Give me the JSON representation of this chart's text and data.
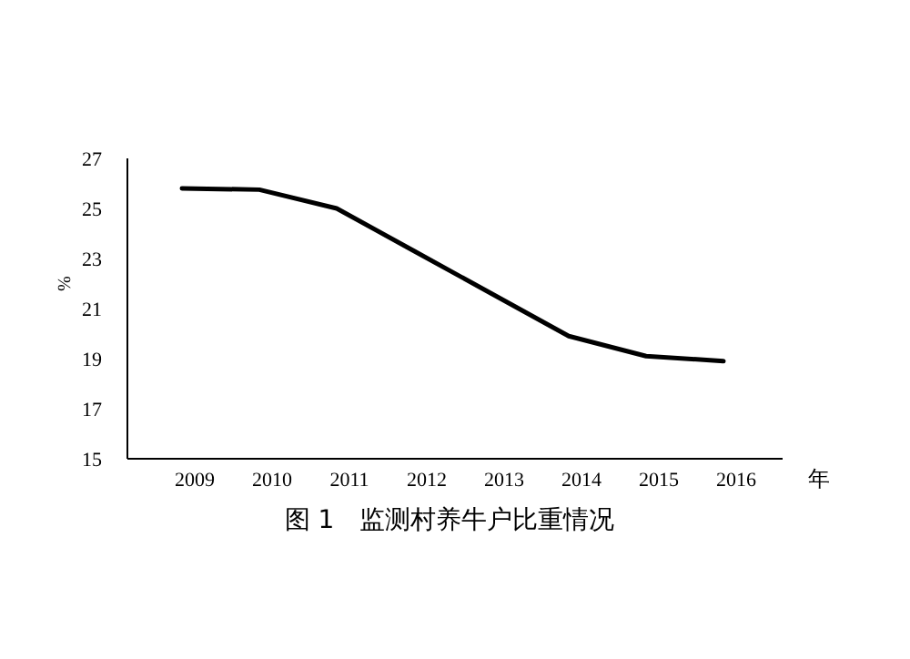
{
  "chart_data": {
    "type": "line",
    "categories": [
      "2009",
      "2010",
      "2011",
      "2012",
      "2013",
      "2014",
      "2015",
      "2016"
    ],
    "series": [
      {
        "color": "#000000",
        "values": [
          25.8,
          25.75,
          25.0,
          23.3,
          21.6,
          19.9,
          19.1,
          18.9
        ]
      }
    ],
    "ylim": [
      15,
      27
    ],
    "yticks": [
      15,
      17,
      19,
      21,
      23,
      25,
      27
    ],
    "xlabel": "年",
    "ylabel": "%",
    "grid": false,
    "marker": "none",
    "line_style": "solid",
    "annotations": [
      "图 1　监测村养牛户比重情况"
    ]
  }
}
